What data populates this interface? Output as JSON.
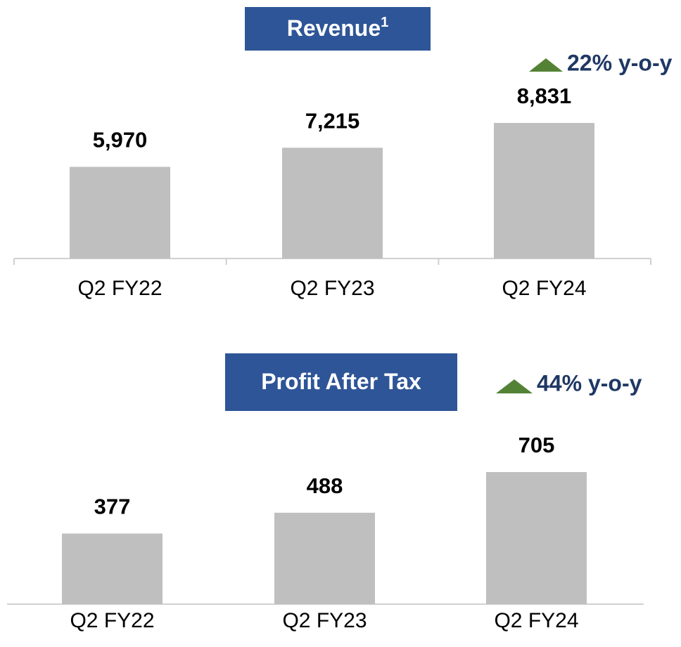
{
  "chart_data": [
    {
      "type": "bar",
      "title": "Revenue",
      "title_footnote": "1",
      "annotation": "22% y-o-y",
      "categories": [
        "Q2 FY22",
        "Q2 FY23",
        "Q2 FY24"
      ],
      "values": [
        5970,
        7215,
        8831
      ],
      "value_labels": [
        "5,970",
        "7,215",
        "8,831"
      ],
      "color": "#bfbfbf"
    },
    {
      "type": "bar",
      "title": "Profit After Tax",
      "annotation": "44% y-o-y",
      "categories": [
        "Q2 FY22",
        "Q2 FY23",
        "Q2 FY24"
      ],
      "values": [
        377,
        488,
        705
      ],
      "color": "#bfbfbf"
    }
  ]
}
